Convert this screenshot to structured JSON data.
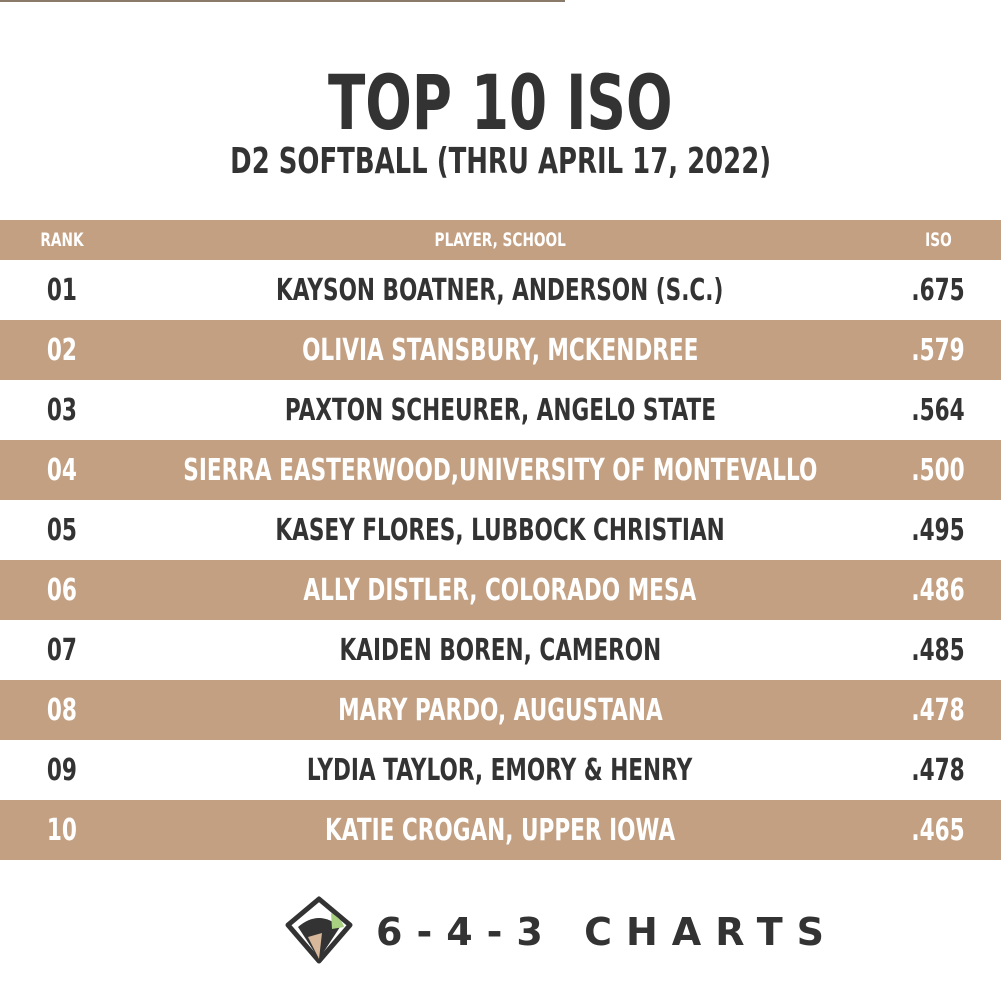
{
  "header": {
    "title": "TOP 10 ISO",
    "subtitle": "D2 SOFTBALL (THRU APRIL 17, 2022)"
  },
  "table": {
    "columns": [
      "RANK",
      "PLAYER, SCHOOL",
      "ISO"
    ],
    "rows": [
      [
        "01",
        "KAYSON BOATNER, ANDERSON (S.C.)",
        ".675"
      ],
      [
        "02",
        "OLIVIA STANSBURY, MCKENDREE",
        ".579"
      ],
      [
        "03",
        "PAXTON SCHEURER, ANGELO STATE",
        ".564"
      ],
      [
        "04",
        "SIERRA EASTERWOOD,UNIVERSITY OF MONTEVALLO",
        ".500"
      ],
      [
        "05",
        "KASEY FLORES, LUBBOCK CHRISTIAN",
        ".495"
      ],
      [
        "06",
        "ALLY DISTLER, COLORADO MESA",
        ".486"
      ],
      [
        "07",
        "KAIDEN BOREN, CAMERON",
        ".485"
      ],
      [
        "08",
        "MARY PARDO, AUGUSTANA",
        ".478"
      ],
      [
        "09",
        "LYDIA TAYLOR, EMORY & HENRY",
        ".478"
      ],
      [
        "10",
        "KATIE CROGAN, UPPER IOWA",
        ".465"
      ]
    ]
  },
  "logo": {
    "text": "6-4-3 CHARTS"
  }
}
